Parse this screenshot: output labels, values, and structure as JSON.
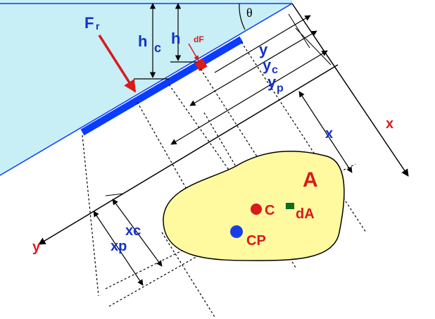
{
  "labels": {
    "resultant_force": "F",
    "resultant_force_sub": "r",
    "centroid_depth": "h",
    "centroid_depth_sub": "c",
    "depth": "h",
    "elemental_force": "dF",
    "angle": "θ",
    "y_axis_top": "y",
    "yc": "y",
    "yc_sub": "c",
    "yp": "y",
    "yp_sub": "p",
    "x_axis": "x",
    "x_dim": "x",
    "area": "A",
    "centroid": "C",
    "element_area": "dA",
    "center_of_pressure": "CP",
    "y_axis_bottom": "y",
    "xc": "xc",
    "xp": "xp"
  },
  "colors": {
    "water": "#c8eef6",
    "plate": "#0a3cff",
    "area_fill": "#fff9a0",
    "red": "#d81b1b",
    "blue": "#1530c8",
    "green": "#0a6e1e",
    "line": "#000000"
  }
}
